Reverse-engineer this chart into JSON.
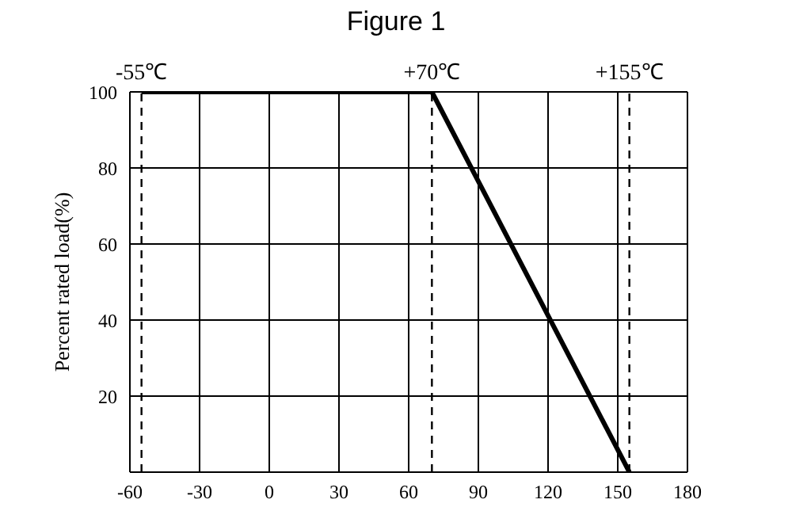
{
  "chart_data": {
    "type": "line",
    "title": "Figure 1",
    "ylabel": "Percent rated load(%)",
    "x": [
      -55,
      70,
      155
    ],
    "series": [
      {
        "color": "#000000",
        "values": [
          100,
          100,
          0
        ]
      }
    ],
    "xlim": [
      -60,
      180
    ],
    "xticks": [
      -60,
      -30,
      0,
      30,
      60,
      90,
      120,
      150,
      180
    ],
    "ylim": [
      0,
      100
    ],
    "yticks": [
      20,
      40,
      60,
      80,
      100
    ],
    "ref_lines": [
      {
        "axis": "x",
        "value": -55,
        "label": "-55℃",
        "color": "#000000",
        "line_style": "dashed"
      },
      {
        "axis": "x",
        "value": 70,
        "label": "+70℃",
        "color": "#000000",
        "line_style": "dashed"
      },
      {
        "axis": "x",
        "value": 155,
        "label": "+155℃",
        "color": "#000000",
        "line_style": "dashed"
      }
    ],
    "grid": true,
    "marker": "none",
    "line_style": "solid"
  }
}
